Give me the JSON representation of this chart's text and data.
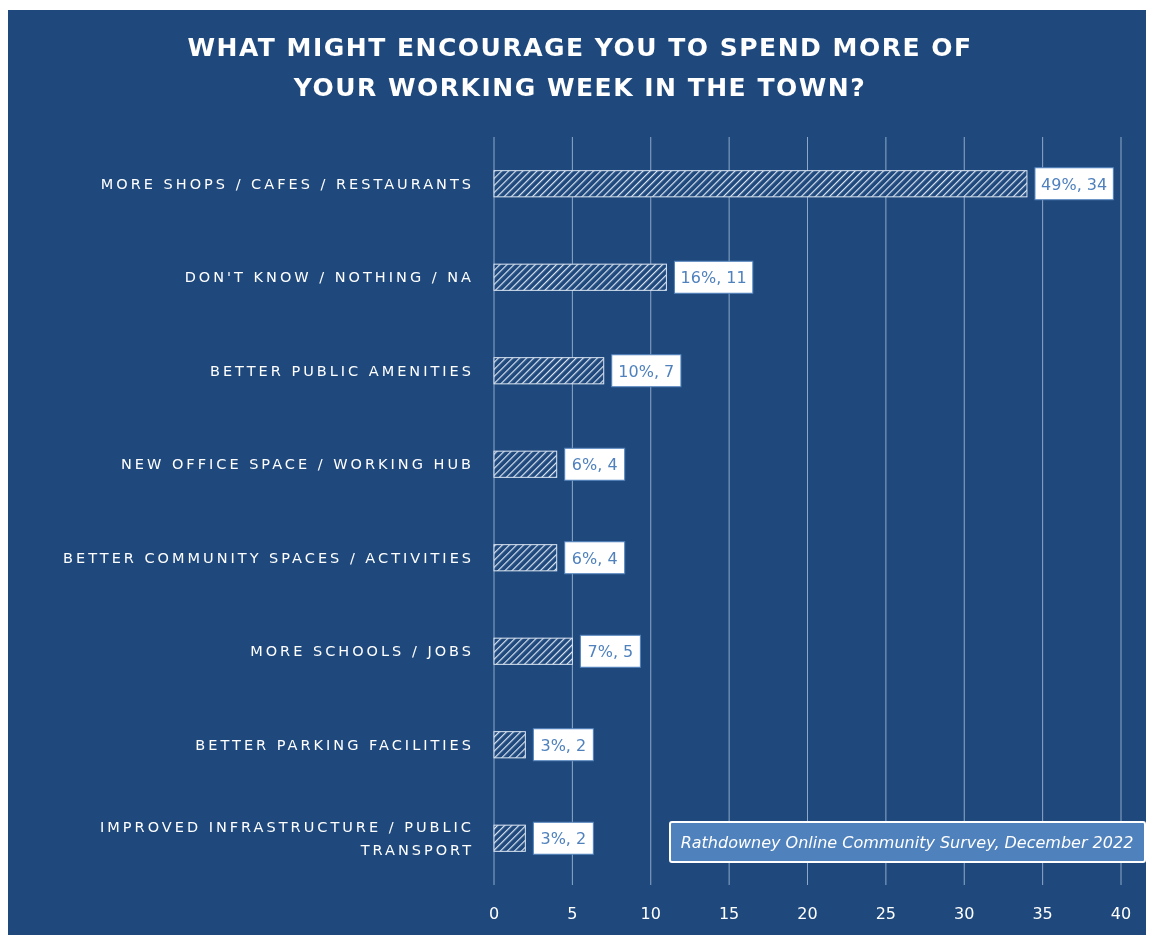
{
  "chart_data": {
    "type": "bar",
    "orientation": "horizontal",
    "title": "WHAT MIGHT ENCOURAGE YOU TO SPEND MORE OF YOUR WORKING WEEK IN THE TOWN?",
    "categories": [
      "MORE SHOPS / CAFES / RESTAURANTS",
      "DON'T KNOW / NOTHING / NA",
      "BETTER PUBLIC AMENITIES",
      "NEW OFFICE SPACE / WORKING HUB",
      "BETTER COMMUNITY SPACES / ACTIVITIES",
      "MORE SCHOOLS / JOBS",
      "BETTER PARKING FACILITIES",
      "IMPROVED INFRASTRUCTURE / PUBLIC TRANSPORT"
    ],
    "values": [
      34,
      11,
      7,
      4,
      4,
      5,
      2,
      2
    ],
    "value_labels": [
      "49%, 34",
      "16%, 11",
      "10%, 7",
      "6%, 4",
      "6%, 4",
      "7%, 5",
      "3%, 2",
      "3%, 2"
    ],
    "color": "#dce6f2",
    "xlim": [
      0,
      40
    ],
    "xticks": [
      0,
      5,
      10,
      15,
      20,
      25,
      30,
      35,
      40
    ],
    "grid": "x",
    "annotations": [
      "Rathdowney Online Community Survey, December 2022"
    ]
  }
}
